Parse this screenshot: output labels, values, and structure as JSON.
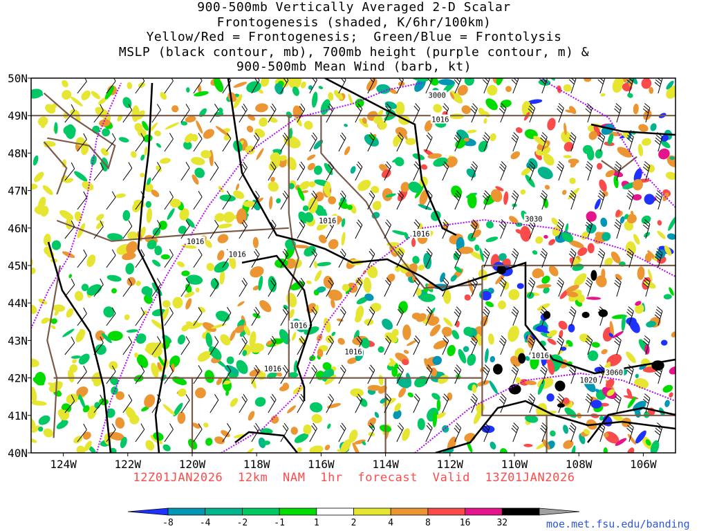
{
  "title": {
    "lines": [
      "900-500mb Vertically Averaged 2-D Scalar",
      "Frontogenesis (shaded, K/6hr/100km)",
      "Yellow/Red = Frontogenesis;  Green/Blue = Frontolysis",
      "MSLP (black contour, mb), 700mb height (purple contour, m) &",
      "900-500mb Mean Wind (barb, kt)"
    ]
  },
  "map": {
    "lon_range": [
      -125,
      -105
    ],
    "lat_range": [
      40,
      50
    ],
    "lat_labels": [
      "50N",
      "49N",
      "48N",
      "47N",
      "46N",
      "45N",
      "44N",
      "43N",
      "42N",
      "41N",
      "40N"
    ],
    "lon_labels": [
      "124W",
      "122W",
      "120W",
      "118W",
      "116W",
      "114W",
      "112W",
      "110W",
      "108W",
      "106W"
    ],
    "mslp_labels": [
      {
        "text": "1016",
        "lon": -112.3,
        "lat": 48.9
      },
      {
        "text": "1016",
        "lon": -115.8,
        "lat": 46.2
      },
      {
        "text": "1016",
        "lon": -119.9,
        "lat": 45.65
      },
      {
        "text": "1016",
        "lon": -118.6,
        "lat": 45.3
      },
      {
        "text": "1016",
        "lon": -112.9,
        "lat": 45.85
      },
      {
        "text": "1016",
        "lon": -116.7,
        "lat": 43.4
      },
      {
        "text": "1016",
        "lon": -115.0,
        "lat": 42.7
      },
      {
        "text": "1016",
        "lon": -117.5,
        "lat": 42.25
      },
      {
        "text": "1016",
        "lon": -109.2,
        "lat": 42.6
      },
      {
        "text": "1020",
        "lon": -107.7,
        "lat": 41.95
      }
    ],
    "height_labels": [
      {
        "text": "3000",
        "lon": -112.4,
        "lat": 49.55
      },
      {
        "text": "3030",
        "lon": -109.4,
        "lat": 46.25
      },
      {
        "text": "3060",
        "lon": -106.9,
        "lat": 42.15
      }
    ]
  },
  "colorbar": {
    "labels": [
      "-8",
      "-4",
      "-2",
      "-1",
      "1",
      "2",
      "4",
      "8",
      "16",
      "32"
    ],
    "colors": [
      "#1e32ff",
      "#0096b4",
      "#00b48c",
      "#00c864",
      "#00dc00",
      "#ffffff",
      "#e6e632",
      "#eb9632",
      "#fa4b4b",
      "#e6148c",
      "#000000",
      "#a0a0a0"
    ]
  },
  "valid_text": "12Z01JAN2026  12km  NAM  1hr  forecast  Valid  13Z01JAN2026",
  "credit": "moe.met.fsu.edu/banding",
  "colors": {
    "mslp": "#000000",
    "height": "#b400ff",
    "borders": "#7a5a4a",
    "valid_text": "#ff4a4a",
    "credit": "#2b57e0"
  }
}
